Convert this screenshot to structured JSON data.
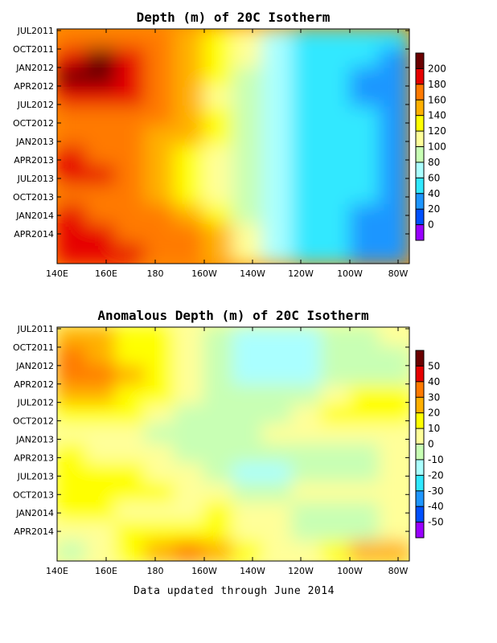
{
  "footer": "Data updated through June 2014",
  "x_tick_labels": [
    "140E",
    "160E",
    "180",
    "160W",
    "140W",
    "120W",
    "100W",
    "80W"
  ],
  "y_tick_labels": [
    "JUL2011",
    "OCT2011",
    "JAN2012",
    "APR2012",
    "JUL2012",
    "OCT2012",
    "JAN2013",
    "APR2013",
    "JUL2013",
    "OCT2013",
    "JAN2014",
    "APR2014"
  ],
  "chart_data": [
    {
      "type": "heatmap",
      "title": "Depth (m) of 20C Isotherm",
      "x_range": [
        "140E",
        "80W"
      ],
      "y_range": [
        "JUL2011",
        "JUN2014"
      ],
      "colorbar": {
        "ticks": [
          200,
          180,
          160,
          140,
          120,
          100,
          80,
          60,
          40,
          20,
          0
        ],
        "colors": [
          "#6b0000",
          "#e60000",
          "#ff7a00",
          "#ffb000",
          "#ffff00",
          "#ffff99",
          "#c8ffb4",
          "#aaffff",
          "#30e8ff",
          "#1e96ff",
          "#0050ff",
          "#9900ff"
        ]
      },
      "values": [
        [
          175,
          175,
          170,
          165,
          150,
          125,
          100,
          70,
          55,
          50,
          45,
          45
        ],
        [
          195,
          200,
          185,
          165,
          150,
          125,
          100,
          70,
          50,
          45,
          40,
          35
        ],
        [
          205,
          200,
          185,
          170,
          145,
          120,
          90,
          65,
          50,
          40,
          35,
          30
        ],
        [
          195,
          190,
          180,
          165,
          140,
          115,
          85,
          60,
          45,
          40,
          35,
          35
        ],
        [
          175,
          170,
          165,
          160,
          145,
          125,
          90,
          65,
          50,
          45,
          40,
          35
        ],
        [
          170,
          160,
          160,
          155,
          140,
          125,
          95,
          70,
          50,
          45,
          40,
          35
        ],
        [
          190,
          175,
          160,
          150,
          130,
          115,
          90,
          70,
          50,
          45,
          40,
          30
        ],
        [
          195,
          180,
          165,
          150,
          130,
          110,
          85,
          60,
          50,
          45,
          40,
          30
        ],
        [
          175,
          165,
          160,
          150,
          135,
          115,
          90,
          65,
          55,
          45,
          40,
          35
        ],
        [
          180,
          170,
          165,
          160,
          145,
          120,
          90,
          60,
          50,
          40,
          35,
          35
        ],
        [
          185,
          180,
          175,
          170,
          160,
          140,
          100,
          65,
          50,
          40,
          35,
          35
        ],
        [
          190,
          185,
          180,
          175,
          160,
          140,
          100,
          70,
          50,
          40,
          35,
          35
        ]
      ]
    },
    {
      "type": "heatmap",
      "title": "Anomalous Depth (m) of 20C Isotherm",
      "x_range": [
        "140E",
        "80W"
      ],
      "y_range": [
        "JUL2011",
        "JUN2014"
      ],
      "colorbar": {
        "ticks": [
          50,
          40,
          30,
          20,
          10,
          0,
          -10,
          -20,
          -30,
          -40,
          -50
        ],
        "colors": [
          "#6b0000",
          "#e60000",
          "#ff7a00",
          "#ffb000",
          "#ffff00",
          "#ffff99",
          "#c8ffb4",
          "#aaffff",
          "#30e8ff",
          "#1e96ff",
          "#0050ff",
          "#9900ff"
        ]
      },
      "values": [
        [
          25,
          20,
          15,
          10,
          5,
          -5,
          -20,
          -20,
          -15,
          -10,
          -5,
          0
        ],
        [
          35,
          25,
          15,
          10,
          5,
          -10,
          -20,
          -20,
          -15,
          -10,
          -5,
          -5
        ],
        [
          35,
          30,
          25,
          15,
          5,
          -5,
          -15,
          -20,
          -15,
          -10,
          -5,
          -5
        ],
        [
          20,
          20,
          15,
          10,
          0,
          -5,
          -10,
          -10,
          -5,
          5,
          10,
          10
        ],
        [
          10,
          10,
          10,
          5,
          -5,
          -10,
          -10,
          -5,
          5,
          10,
          15,
          10
        ],
        [
          5,
          0,
          0,
          -5,
          -5,
          -5,
          -5,
          0,
          5,
          5,
          5,
          5
        ],
        [
          10,
          5,
          5,
          0,
          -5,
          -10,
          -10,
          -5,
          -5,
          -5,
          -5,
          0
        ],
        [
          15,
          10,
          10,
          5,
          0,
          -10,
          -20,
          -15,
          -10,
          -10,
          -5,
          0
        ],
        [
          15,
          15,
          10,
          10,
          5,
          0,
          -5,
          -5,
          0,
          0,
          0,
          0
        ],
        [
          10,
          10,
          5,
          5,
          5,
          10,
          5,
          0,
          -5,
          -5,
          -5,
          0
        ],
        [
          5,
          5,
          10,
          10,
          15,
          15,
          5,
          0,
          -5,
          -5,
          -5,
          5
        ],
        [
          -5,
          0,
          10,
          20,
          30,
          20,
          10,
          5,
          5,
          10,
          20,
          25
        ]
      ]
    }
  ]
}
